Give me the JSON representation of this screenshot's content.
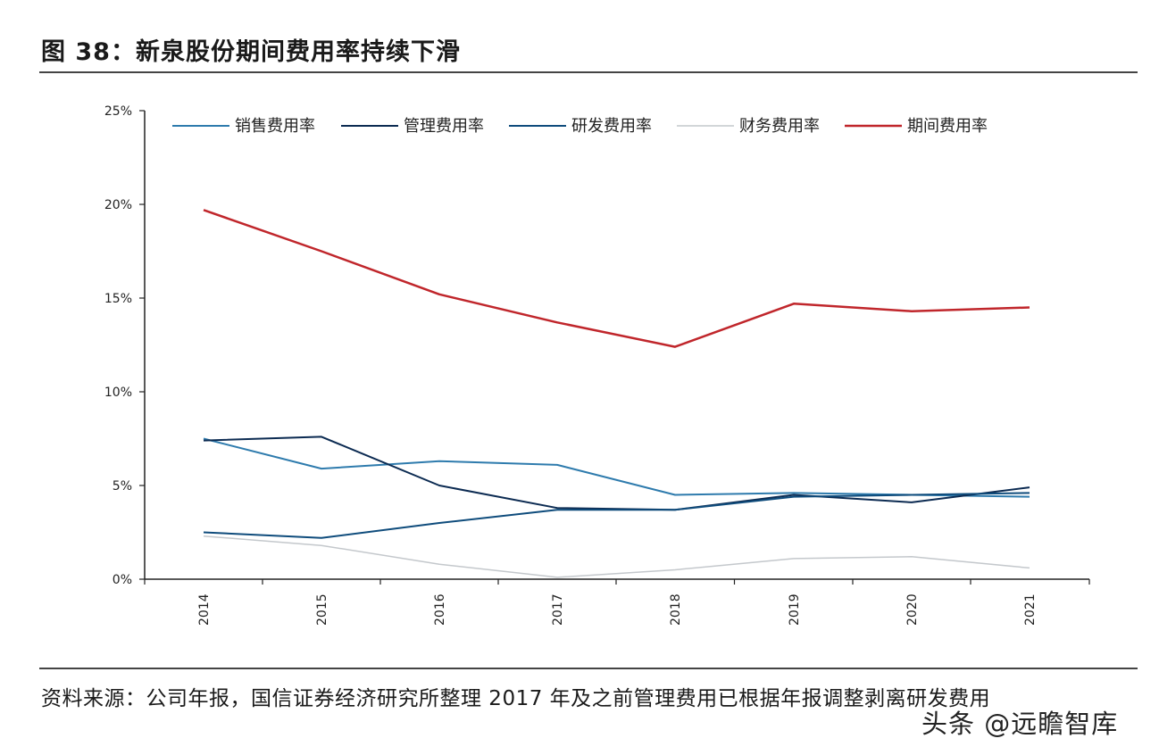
{
  "header": {
    "title": "图 38：新泉股份期间费用率持续下滑"
  },
  "footer": {
    "source": "资料来源：公司年报，国信证券经济研究所整理 2017 年及之前管理费用已根据年报调整剥离研发费用",
    "watermark": "头条 @远瞻智库"
  },
  "chart_data": {
    "type": "line",
    "categories": [
      "2014",
      "2015",
      "2016",
      "2017",
      "2018",
      "2019",
      "2020",
      "2021"
    ],
    "ylim": [
      0,
      25
    ],
    "yticks": [
      "0%",
      "5%",
      "10%",
      "15%",
      "20%",
      "25%"
    ],
    "ytick_values": [
      0,
      5,
      10,
      15,
      20,
      25
    ],
    "grid": false,
    "legend_position": "top",
    "series": [
      {
        "name": "销售费用率",
        "color": "#2e7bad",
        "width": 2,
        "values": [
          7.5,
          5.9,
          6.3,
          6.1,
          4.5,
          4.6,
          4.5,
          4.4
        ]
      },
      {
        "name": "管理费用率",
        "color": "#0c2b52",
        "width": 2,
        "values": [
          7.4,
          7.6,
          5.0,
          3.8,
          3.7,
          4.5,
          4.1,
          4.9
        ]
      },
      {
        "name": "研发费用率",
        "color": "#0f4c7c",
        "width": 2,
        "values": [
          2.5,
          2.2,
          3.0,
          3.7,
          3.7,
          4.4,
          4.5,
          4.6
        ]
      },
      {
        "name": "财务费用率",
        "color": "#c4c8cc",
        "width": 1.5,
        "values": [
          2.3,
          1.8,
          0.8,
          0.1,
          0.5,
          1.1,
          1.2,
          0.6
        ]
      },
      {
        "name": "期间费用率",
        "color": "#c0262b",
        "width": 2.5,
        "values": [
          19.7,
          17.5,
          15.2,
          13.7,
          12.4,
          14.7,
          14.3,
          14.5
        ]
      }
    ]
  }
}
